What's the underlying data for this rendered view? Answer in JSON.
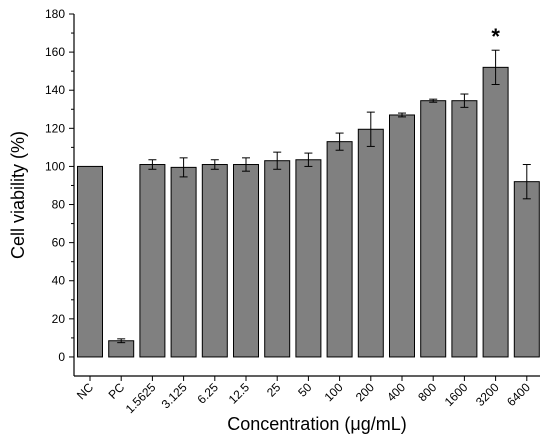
{
  "chart_data": {
    "type": "bar",
    "xlabel": "Concentration (μg/mL)",
    "ylabel": "Cell viability (%)",
    "categories": [
      "NC",
      "PC",
      "1.5625",
      "3.125",
      "6.25",
      "12.5",
      "25",
      "50",
      "100",
      "200",
      "400",
      "800",
      "1600",
      "3200",
      "6400"
    ],
    "values": [
      100,
      8.5,
      101,
      99.5,
      101,
      101,
      103,
      103.5,
      113,
      119.5,
      127,
      134.5,
      134.5,
      152,
      92
    ],
    "errors": [
      0,
      1,
      2.5,
      5,
      2.5,
      3.5,
      4.5,
      3.5,
      4.5,
      9,
      1,
      0.8,
      3.5,
      9,
      9
    ],
    "ylim": [
      -10,
      180
    ],
    "yticks": [
      0,
      20,
      40,
      60,
      80,
      100,
      120,
      140,
      160,
      180
    ],
    "annotations": [
      {
        "category": "3200",
        "text": "*"
      }
    ],
    "bar_color": "#808080",
    "grid": false
  }
}
